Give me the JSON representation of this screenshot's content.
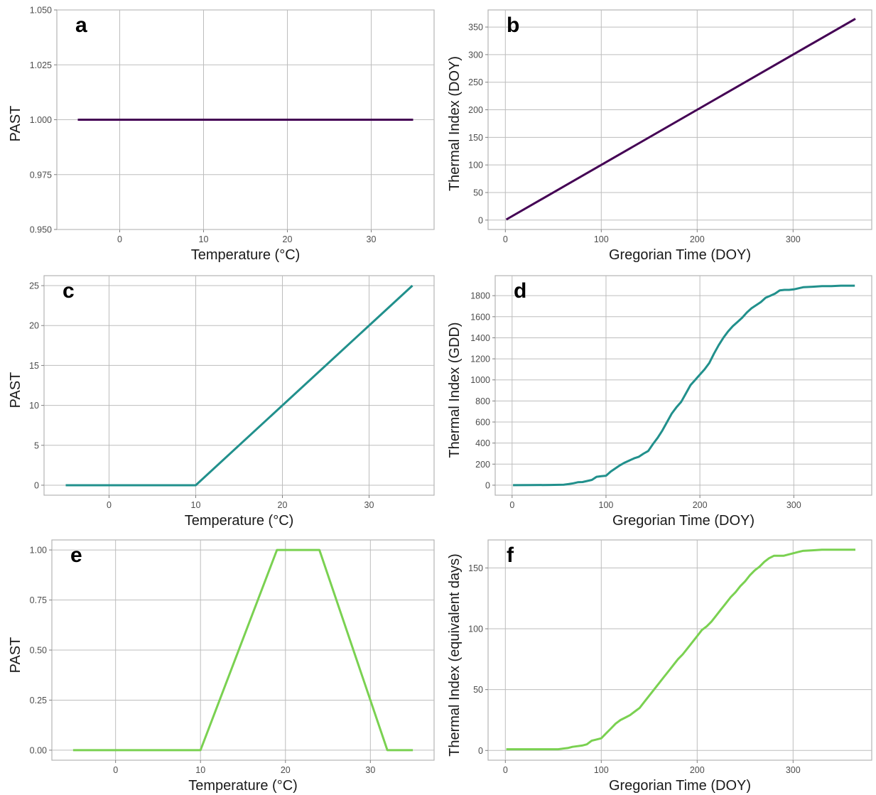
{
  "chart_data": [
    {
      "type": "line",
      "panel_label": "a",
      "xlabel": "Temperature (°C)",
      "ylabel": "PAST",
      "xlim": [
        -7.5,
        37.5
      ],
      "ylim": [
        0.95,
        1.05
      ],
      "xticks": [
        0,
        10,
        20,
        30
      ],
      "xtick_labels": [
        "0",
        "10",
        "20",
        "30"
      ],
      "yticks": [
        0.95,
        0.975,
        1.0,
        1.025,
        1.05
      ],
      "ytick_labels": [
        "0.950",
        "0.975",
        "1.000",
        "1.025",
        "1.050"
      ],
      "grid": true,
      "color": "#440154",
      "series": [
        {
          "x": [
            -5,
            35
          ],
          "y": [
            1.0,
            1.0
          ]
        }
      ]
    },
    {
      "type": "line",
      "panel_label": "b",
      "xlabel": "Gregorian Time (DOY)",
      "ylabel": "Thermal Index (DOY)",
      "xlim": [
        -18,
        382
      ],
      "ylim": [
        -17,
        381
      ],
      "xticks": [
        0,
        100,
        200,
        300
      ],
      "xtick_labels": [
        "0",
        "100",
        "200",
        "300"
      ],
      "yticks": [
        0,
        50,
        100,
        150,
        200,
        250,
        300,
        350
      ],
      "ytick_labels": [
        "0",
        "50",
        "100",
        "150",
        "200",
        "250",
        "300",
        "350"
      ],
      "grid": true,
      "color": "#440154",
      "series": [
        {
          "x": [
            1,
            365
          ],
          "y": [
            1,
            365
          ]
        }
      ]
    },
    {
      "type": "line",
      "panel_label": "c",
      "xlabel": "Temperature (°C)",
      "ylabel": "PAST",
      "xlim": [
        -7.5,
        37.5
      ],
      "ylim": [
        -1.25,
        26.25
      ],
      "xticks": [
        0,
        10,
        20,
        30
      ],
      "xtick_labels": [
        "0",
        "10",
        "20",
        "30"
      ],
      "yticks": [
        0,
        5,
        10,
        15,
        20,
        25
      ],
      "ytick_labels": [
        "0",
        "5",
        "10",
        "15",
        "20",
        "25"
      ],
      "grid": true,
      "color": "#21908C",
      "series": [
        {
          "x": [
            -5,
            10,
            35
          ],
          "y": [
            0,
            0,
            25
          ]
        }
      ]
    },
    {
      "type": "line",
      "panel_label": "d",
      "xlabel": "Gregorian Time (DOY)",
      "ylabel": "Thermal Index (GDD)",
      "xlim": [
        -18,
        383
      ],
      "ylim": [
        -95,
        1990
      ],
      "xticks": [
        0,
        100,
        200,
        300
      ],
      "xtick_labels": [
        "0",
        "100",
        "200",
        "300"
      ],
      "yticks": [
        0,
        200,
        400,
        600,
        800,
        1000,
        1200,
        1400,
        1600,
        1800
      ],
      "ytick_labels": [
        "0",
        "200",
        "400",
        "600",
        "800",
        "1000",
        "1200",
        "1400",
        "1600",
        "1800"
      ],
      "grid": true,
      "color": "#21908C",
      "series": [
        {
          "x": [
            1,
            20,
            40,
            55,
            60,
            65,
            70,
            75,
            80,
            85,
            90,
            95,
            100,
            105,
            110,
            115,
            120,
            125,
            130,
            135,
            140,
            145,
            150,
            155,
            160,
            165,
            170,
            175,
            180,
            185,
            190,
            195,
            200,
            205,
            210,
            215,
            220,
            225,
            230,
            235,
            240,
            245,
            250,
            255,
            260,
            265,
            270,
            275,
            280,
            285,
            290,
            295,
            300,
            305,
            310,
            320,
            330,
            340,
            350,
            365
          ],
          "y": [
            0,
            1,
            2,
            5,
            10,
            18,
            28,
            30,
            40,
            50,
            80,
            85,
            90,
            130,
            160,
            190,
            215,
            235,
            255,
            270,
            300,
            325,
            390,
            450,
            520,
            600,
            680,
            740,
            790,
            870,
            950,
            1000,
            1050,
            1100,
            1160,
            1250,
            1330,
            1400,
            1460,
            1510,
            1550,
            1590,
            1640,
            1680,
            1710,
            1740,
            1780,
            1800,
            1820,
            1850,
            1855,
            1855,
            1860,
            1870,
            1880,
            1885,
            1890,
            1890,
            1895,
            1895
          ]
        }
      ]
    },
    {
      "type": "line",
      "panel_label": "e",
      "xlabel": "Temperature (°C)",
      "ylabel": "PAST",
      "xlim": [
        -7.5,
        37.5
      ],
      "ylim": [
        -0.05,
        1.05
      ],
      "xticks": [
        0,
        10,
        20,
        30
      ],
      "xtick_labels": [
        "0",
        "10",
        "20",
        "30"
      ],
      "yticks": [
        0,
        0.25,
        0.5,
        0.75,
        1.0
      ],
      "ytick_labels": [
        "0.00",
        "0.25",
        "0.50",
        "0.75",
        "1.00"
      ],
      "grid": true,
      "color": "#7AD151",
      "series": [
        {
          "x": [
            -5,
            10,
            19,
            24,
            32,
            35
          ],
          "y": [
            0,
            0,
            1,
            1,
            0,
            0
          ]
        }
      ]
    },
    {
      "type": "line",
      "panel_label": "f",
      "xlabel": "Gregorian Time (DOY)",
      "ylabel": "Thermal Index (equivalent days)",
      "xlim": [
        -18,
        382
      ],
      "ylim": [
        -8,
        173
      ],
      "xticks": [
        0,
        100,
        200,
        300
      ],
      "xtick_labels": [
        "0",
        "100",
        "200",
        "300"
      ],
      "yticks": [
        0,
        50,
        100,
        150
      ],
      "ytick_labels": [
        "0",
        "50",
        "100",
        "150"
      ],
      "grid": true,
      "color": "#7AD151",
      "series": [
        {
          "x": [
            1,
            20,
            40,
            55,
            60,
            65,
            70,
            75,
            80,
            85,
            90,
            95,
            100,
            105,
            110,
            115,
            120,
            125,
            130,
            135,
            140,
            145,
            150,
            155,
            160,
            165,
            170,
            175,
            180,
            185,
            190,
            195,
            200,
            205,
            210,
            215,
            220,
            225,
            230,
            235,
            240,
            245,
            250,
            255,
            260,
            265,
            270,
            275,
            280,
            285,
            290,
            295,
            300,
            305,
            310,
            320,
            330,
            340,
            350,
            365
          ],
          "y": [
            1,
            1,
            1,
            1,
            1.5,
            2,
            3,
            3.5,
            4,
            5,
            8,
            9,
            10,
            14,
            18,
            22,
            25,
            27,
            29,
            32,
            35,
            40,
            45,
            50,
            55,
            60,
            65,
            70,
            75,
            79,
            84,
            89,
            94,
            99,
            102,
            106,
            111,
            116,
            121,
            126,
            130,
            135,
            139,
            144,
            148,
            151,
            155,
            158,
            160,
            160,
            160,
            161,
            162,
            163,
            164,
            164.5,
            165,
            165,
            165,
            165
          ]
        }
      ]
    }
  ]
}
